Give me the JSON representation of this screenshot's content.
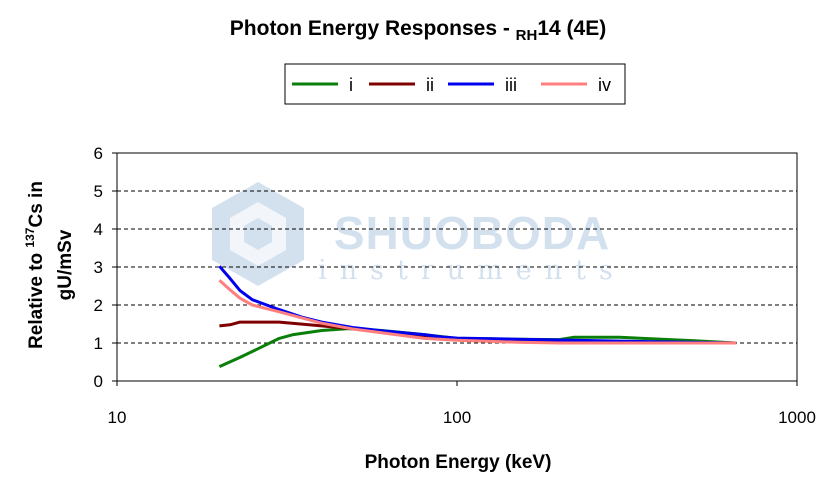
{
  "chart_data": {
    "type": "line",
    "title": "Photon Energy Responses - ",
    "title_model_sub": "RH",
    "title_model_rest": "14 (4E)",
    "xlabel": "Photon Energy (keV)",
    "ylabel_line1_pre": "Relative to ",
    "ylabel_line1_sup": "137",
    "ylabel_line1_post": "Cs in",
    "ylabel_line2": "gU/mSv",
    "x_scale": "log",
    "xlim": [
      10,
      1000
    ],
    "ylim": [
      0,
      6
    ],
    "x_ticks": [
      10,
      100,
      1000
    ],
    "x_tick_labels": [
      "10",
      "100",
      "1000"
    ],
    "y_ticks": [
      0,
      1,
      2,
      3,
      4,
      5,
      6
    ],
    "y_tick_labels": [
      "0",
      "1",
      "2",
      "3",
      "4",
      "5",
      "6"
    ],
    "grid": "horizontal dashed",
    "legend_position": "top",
    "series": [
      {
        "name": "i",
        "color": "#0a7f0a",
        "x": [
          20,
          23,
          26,
          30,
          33,
          40,
          48,
          60,
          80,
          100,
          150,
          200,
          220,
          300,
          400,
          500,
          662
        ],
        "y": [
          0.38,
          0.62,
          0.85,
          1.12,
          1.22,
          1.33,
          1.38,
          1.33,
          1.22,
          1.12,
          1.1,
          1.09,
          1.15,
          1.15,
          1.1,
          1.06,
          1.0
        ]
      },
      {
        "name": "ii",
        "color": "#7f0000",
        "x": [
          20,
          21.5,
          23,
          25,
          30,
          40,
          60,
          80,
          100,
          150,
          200,
          300,
          400,
          662
        ],
        "y": [
          1.45,
          1.48,
          1.55,
          1.55,
          1.55,
          1.45,
          1.3,
          1.18,
          1.1,
          1.05,
          1.03,
          1.02,
          1.01,
          1.0
        ]
      },
      {
        "name": "iii",
        "color": "#0000ee",
        "x": [
          20,
          21.5,
          23,
          25,
          30,
          35,
          40,
          50,
          60,
          80,
          90,
          100,
          150,
          200,
          300,
          400,
          662
        ],
        "y": [
          3.02,
          2.7,
          2.38,
          2.14,
          1.88,
          1.68,
          1.55,
          1.4,
          1.32,
          1.22,
          1.16,
          1.13,
          1.1,
          1.08,
          1.05,
          1.03,
          1.0
        ]
      },
      {
        "name": "iv",
        "color": "#ff7f7f",
        "x": [
          20,
          21.5,
          23,
          25,
          30,
          35,
          40,
          50,
          60,
          80,
          100,
          150,
          200,
          300,
          400,
          662
        ],
        "y": [
          2.65,
          2.4,
          2.18,
          2.0,
          1.82,
          1.66,
          1.52,
          1.36,
          1.27,
          1.12,
          1.07,
          1.02,
          1.0,
          1.0,
          1.0,
          1.0
        ]
      }
    ]
  },
  "watermark": {
    "main_text": "SHUOBODA",
    "sub_text": "instruments",
    "color": "#c5d7ea"
  }
}
